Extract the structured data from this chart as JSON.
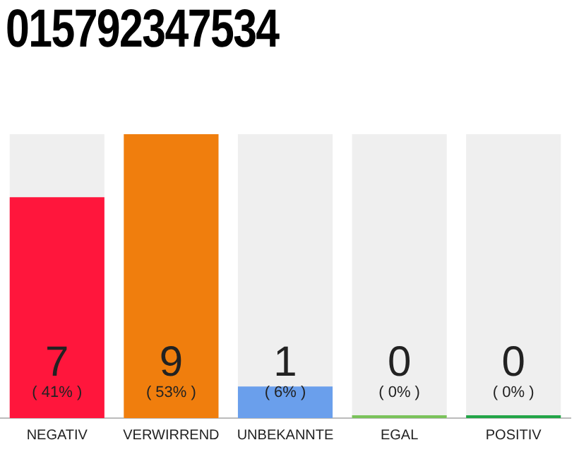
{
  "chart_data": {
    "type": "bar",
    "title": "015792347534",
    "categories": [
      "NEGATIV",
      "VERWIRREND",
      "UNBEKANNTE",
      "EGAL",
      "POSITIV"
    ],
    "values": [
      7,
      9,
      1,
      0,
      0
    ],
    "colors": [
      "#ff163c",
      "#f07e0d",
      "#6a9fec",
      "#7ac35a",
      "#22a547"
    ],
    "tick_labels": "x",
    "grid": false,
    "legend": false,
    "value_labels": [
      "7\n( 41% )",
      "9\n( 53% )",
      "1\n( 6% )",
      "0\n( 0% )",
      "0\n( 0% )"
    ]
  }
}
